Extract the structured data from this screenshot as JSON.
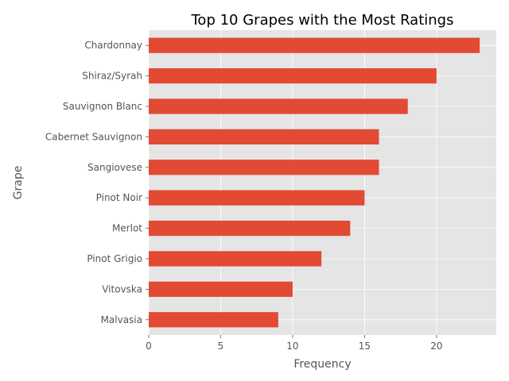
{
  "chart_data": {
    "type": "bar",
    "orientation": "horizontal",
    "title": "Top 10 Grapes with the Most Ratings",
    "xlabel": "Frequency",
    "ylabel": "Grape",
    "categories": [
      "Chardonnay",
      "Shiraz/Syrah",
      "Sauvignon Blanc",
      "Cabernet Sauvignon",
      "Sangiovese",
      "Pinot Noir",
      "Merlot",
      "Pinot Grigio",
      "Vitovska",
      "Malvasia"
    ],
    "values": [
      23,
      20,
      18,
      16,
      16,
      15,
      14,
      12,
      10,
      9
    ],
    "xlim": [
      0,
      24.15
    ],
    "xticks": [
      0,
      5,
      10,
      15,
      20
    ],
    "grid": true,
    "style": "ggplot",
    "colors": {
      "bar": "#E24A33",
      "plot_background": "#E5E5E5",
      "grid": "#FFFFFF",
      "text": "#555555"
    }
  }
}
